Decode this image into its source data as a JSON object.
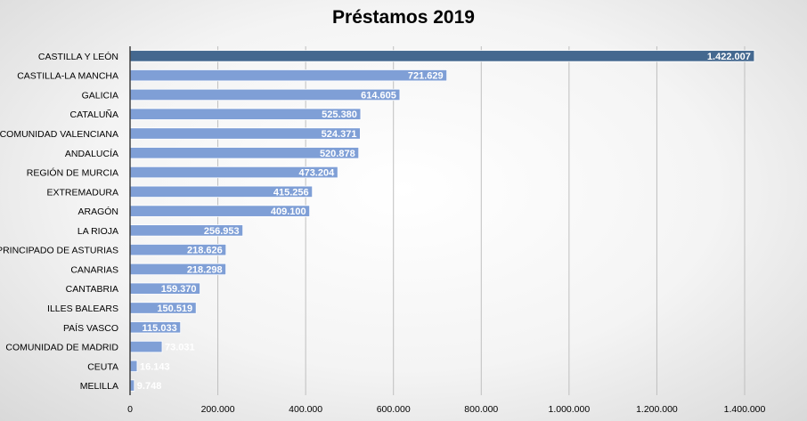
{
  "chart_data": {
    "type": "bar",
    "orientation": "horizontal",
    "title": "Préstamos 2019",
    "xlabel": "",
    "ylabel": "",
    "categories": [
      "CASTILLA Y LEÓN",
      "CASTILLA-LA MANCHA",
      "GALICIA",
      "CATALUÑA",
      "COMUNIDAD VALENCIANA",
      "ANDALUCÍA",
      "REGIÓN DE MURCIA",
      "EXTREMADURA",
      "ARAGÓN",
      "LA RIOJA",
      "PRINCIPADO DE ASTURIAS",
      "CANARIAS",
      "CANTABRIA",
      "ILLES BALEARS",
      "PAÍS VASCO",
      "COMUNIDAD DE MADRID",
      "CEUTA",
      "MELILLA"
    ],
    "values": [
      1422007,
      721629,
      614605,
      525380,
      524371,
      520878,
      473204,
      415256,
      409100,
      256953,
      218626,
      218298,
      159370,
      150519,
      115033,
      73031,
      16143,
      9748
    ],
    "value_labels": [
      "1.422.007",
      "721.629",
      "614.605",
      "525.380",
      "524.371",
      "520.878",
      "473.204",
      "415.256",
      "409.100",
      "256.953",
      "218.626",
      "218.298",
      "159.370",
      "150.519",
      "115.033",
      "73.031",
      "16.143",
      "9.748"
    ],
    "xlim": [
      0,
      1400000
    ],
    "x_ticks": [
      0,
      200000,
      400000,
      600000,
      800000,
      1000000,
      1200000,
      1400000
    ],
    "x_tick_labels": [
      "0",
      "200.000",
      "400.000",
      "600.000",
      "800.000",
      "1.000.000",
      "1.200.000",
      "1.400.000"
    ],
    "grid": "vertical",
    "legend": "none",
    "colors": {
      "highlight_bar": "#44688f",
      "bar": "#7f9fd6",
      "bar_border": "#ffffff",
      "value_label": "#ffffff",
      "gridline": "#bfbfbf",
      "axis": "#404040",
      "text": "#000000"
    }
  }
}
